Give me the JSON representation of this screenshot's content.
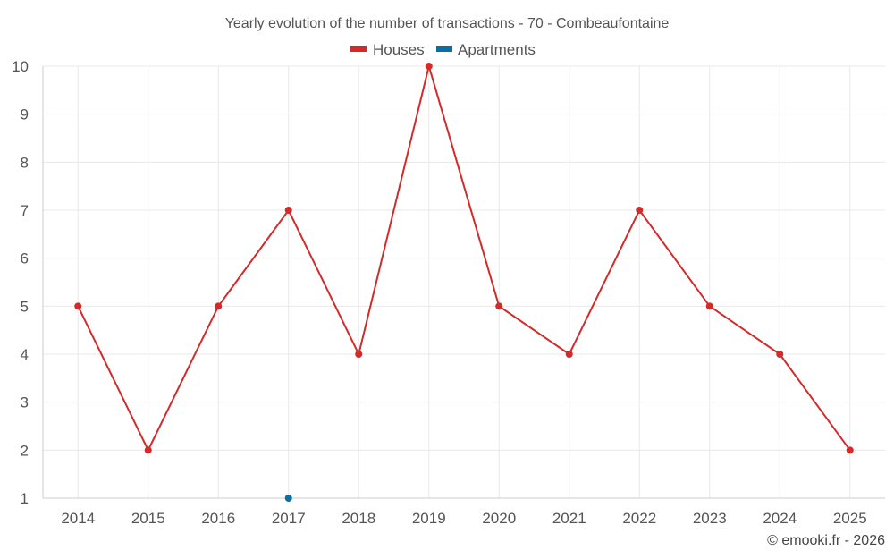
{
  "chart_data": {
    "type": "line",
    "title": "Yearly evolution of the number of transactions - 70 - Combeaufontaine",
    "categories": [
      "2014",
      "2015",
      "2016",
      "2017",
      "2018",
      "2019",
      "2020",
      "2021",
      "2022",
      "2023",
      "2024",
      "2025"
    ],
    "series": [
      {
        "name": "Houses",
        "color": "#d32a2a",
        "values": [
          5,
          2,
          5,
          7,
          4,
          10,
          5,
          4,
          7,
          5,
          4,
          2
        ]
      },
      {
        "name": "Apartments",
        "color": "#0b6fa4",
        "values": [
          null,
          null,
          null,
          1,
          null,
          null,
          null,
          null,
          null,
          null,
          null,
          null
        ]
      }
    ],
    "ylim": [
      1,
      10
    ],
    "yticks": [
      1,
      2,
      3,
      4,
      5,
      6,
      7,
      8,
      9,
      10
    ],
    "xlabel": "",
    "ylabel": "",
    "legend_position": "top-center",
    "grid": true
  },
  "credit": "© emooki.fr - 2026"
}
